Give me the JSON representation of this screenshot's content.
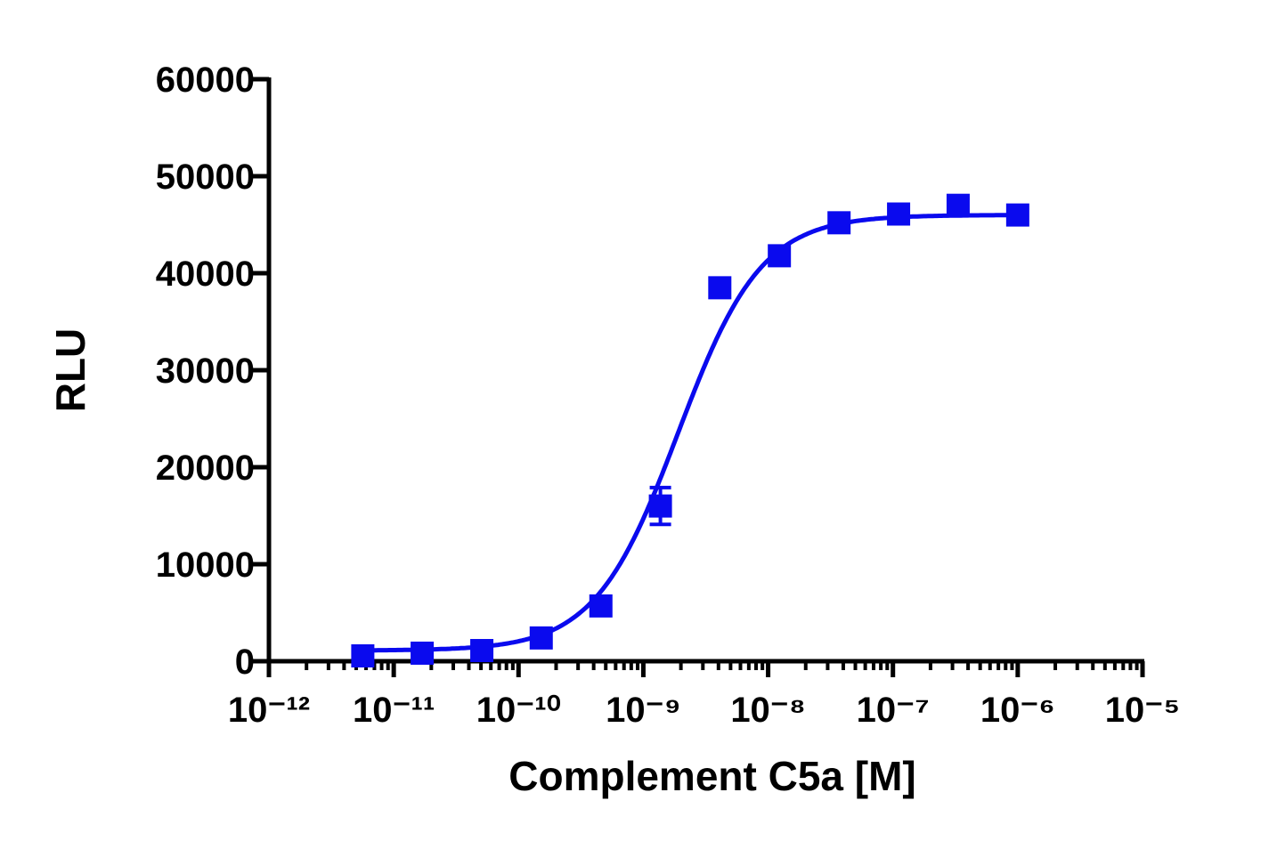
{
  "chart_data": {
    "type": "scatter",
    "xlabel": "Complement C5a [M]",
    "ylabel": "RLU",
    "xscale": "log",
    "minor_ticks": true,
    "xlim": [
      1e-12,
      1e-05
    ],
    "xticks": [
      {
        "value": 1e-12,
        "label": "10⁻¹²"
      },
      {
        "value": 1e-11,
        "label": "10⁻¹¹"
      },
      {
        "value": 1e-10,
        "label": "10⁻¹⁰"
      },
      {
        "value": 1e-09,
        "label": "10⁻⁹"
      },
      {
        "value": 1e-08,
        "label": "10⁻⁸"
      },
      {
        "value": 1e-07,
        "label": "10⁻⁷"
      },
      {
        "value": 1e-06,
        "label": "10⁻⁶"
      },
      {
        "value": 1e-05,
        "label": "10⁻⁵"
      }
    ],
    "ylim": [
      0,
      60000
    ],
    "yticks": [
      0,
      10000,
      20000,
      30000,
      40000,
      50000,
      60000
    ],
    "series": [
      {
        "color": "#0a0aee",
        "x": [
          5.65e-12,
          1.69e-11,
          5.08e-11,
          1.52e-10,
          4.57e-10,
          1.37e-09,
          4.1e-09,
          1.23e-08,
          3.7e-08,
          1.11e-07,
          3.33e-07,
          1e-06
        ],
        "values": [
          550,
          830,
          1100,
          2400,
          5700,
          16000,
          38500,
          41800,
          45200,
          46100,
          47000,
          46000
        ],
        "errors": [
          300,
          300,
          300,
          400,
          600,
          1900,
          700,
          500,
          500,
          400,
          600,
          400
        ],
        "fit": {
          "bottom": 1100,
          "top": 46000,
          "ec50": 1.9e-09,
          "hill": 1.3
        }
      }
    ]
  }
}
